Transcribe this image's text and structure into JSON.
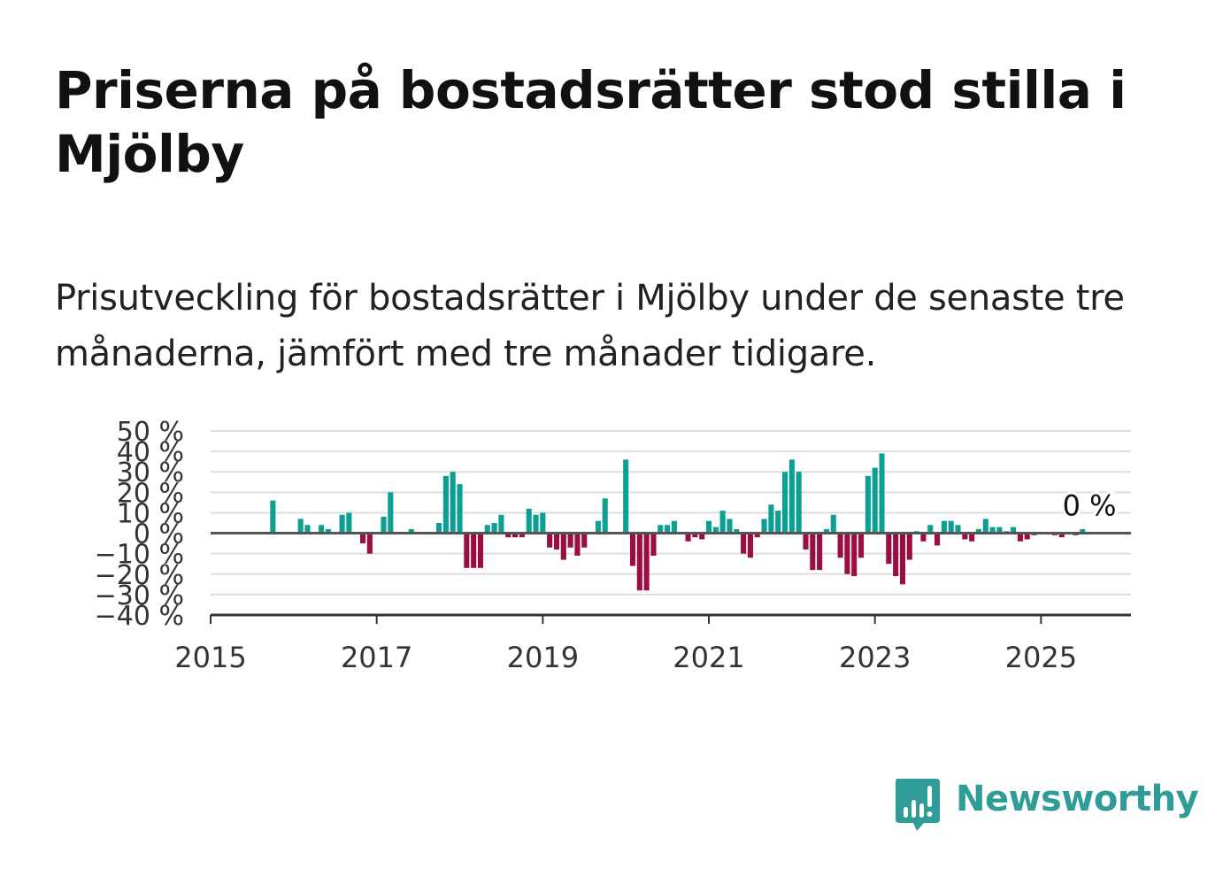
{
  "header": {
    "title": "Priserna på bostadsrätter stod stilla i Mjölby",
    "subtitle": "Prisutveckling för bostadsrätter i Mjölby under de senaste tre månaderna, jämfört med tre månader tidigare."
  },
  "brand": {
    "name": "Newsworthy",
    "logo_icon": "bar-chart-speech-bubble-icon",
    "color": "#2f9c98"
  },
  "colors": {
    "positive": "#0d9e94",
    "negative": "#9b0e44",
    "zero_line": "#555555",
    "grid": "#dddddd",
    "axis": "#333333"
  },
  "chart_data": {
    "type": "bar",
    "title": "",
    "xlabel": "",
    "ylabel": "",
    "ylim": [
      -40,
      50
    ],
    "yticks": [
      50,
      40,
      30,
      20,
      10,
      0,
      -10,
      -20,
      -30,
      -40
    ],
    "ytick_labels": [
      "50 %",
      "40 %",
      "30 %",
      "20 %",
      "10 %",
      "0 %",
      "−10 %",
      "−20 %",
      "−30 %",
      "−40 %"
    ],
    "xlim": [
      "2015-01",
      "2026-02"
    ],
    "xticks": [
      "2015-01",
      "2017-01",
      "2019-01",
      "2021-01",
      "2023-01",
      "2025-01"
    ],
    "xtick_labels": [
      "2015",
      "2017",
      "2019",
      "2021",
      "2023",
      "2025"
    ],
    "grid": true,
    "last_value_label": "0 %",
    "series": [
      {
        "values": [
          [
            "2015-10",
            16
          ],
          [
            "2016-02",
            7
          ],
          [
            "2016-03",
            4
          ],
          [
            "2016-05",
            4
          ],
          [
            "2016-06",
            2
          ],
          [
            "2016-08",
            9
          ],
          [
            "2016-09",
            10
          ],
          [
            "2016-11",
            -5
          ],
          [
            "2016-12",
            -10
          ],
          [
            "2017-02",
            8
          ],
          [
            "2017-03",
            20
          ],
          [
            "2017-06",
            2
          ],
          [
            "2017-10",
            5
          ],
          [
            "2017-11",
            28
          ],
          [
            "2017-12",
            30
          ],
          [
            "2018-01",
            24
          ],
          [
            "2018-02",
            -17
          ],
          [
            "2018-03",
            -17
          ],
          [
            "2018-04",
            -17
          ],
          [
            "2018-05",
            4
          ],
          [
            "2018-06",
            5
          ],
          [
            "2018-07",
            9
          ],
          [
            "2018-08",
            -2
          ],
          [
            "2018-09",
            -2
          ],
          [
            "2018-10",
            -2
          ],
          [
            "2018-11",
            12
          ],
          [
            "2018-12",
            9
          ],
          [
            "2019-01",
            10
          ],
          [
            "2019-02",
            -7
          ],
          [
            "2019-03",
            -8
          ],
          [
            "2019-04",
            -13
          ],
          [
            "2019-05",
            -7
          ],
          [
            "2019-06",
            -11
          ],
          [
            "2019-07",
            -7
          ],
          [
            "2019-09",
            6
          ],
          [
            "2019-10",
            17
          ],
          [
            "2020-01",
            36
          ],
          [
            "2020-02",
            -16
          ],
          [
            "2020-03",
            -28
          ],
          [
            "2020-04",
            -28
          ],
          [
            "2020-05",
            -11
          ],
          [
            "2020-06",
            4
          ],
          [
            "2020-07",
            4
          ],
          [
            "2020-08",
            6
          ],
          [
            "2020-10",
            -4
          ],
          [
            "2020-11",
            -2
          ],
          [
            "2020-12",
            -3
          ],
          [
            "2021-01",
            6
          ],
          [
            "2021-02",
            3
          ],
          [
            "2021-03",
            11
          ],
          [
            "2021-04",
            7
          ],
          [
            "2021-05",
            2
          ],
          [
            "2021-06",
            -10
          ],
          [
            "2021-07",
            -12
          ],
          [
            "2021-08",
            -2
          ],
          [
            "2021-09",
            7
          ],
          [
            "2021-10",
            14
          ],
          [
            "2021-11",
            11
          ],
          [
            "2021-12",
            30
          ],
          [
            "2022-01",
            36
          ],
          [
            "2022-02",
            30
          ],
          [
            "2022-03",
            -8
          ],
          [
            "2022-04",
            -18
          ],
          [
            "2022-05",
            -18
          ],
          [
            "2022-06",
            2
          ],
          [
            "2022-07",
            9
          ],
          [
            "2022-08",
            -12
          ],
          [
            "2022-09",
            -20
          ],
          [
            "2022-10",
            -21
          ],
          [
            "2022-11",
            -12
          ],
          [
            "2022-12",
            28
          ],
          [
            "2023-01",
            32
          ],
          [
            "2023-02",
            39
          ],
          [
            "2023-03",
            -15
          ],
          [
            "2023-04",
            -21
          ],
          [
            "2023-05",
            -25
          ],
          [
            "2023-06",
            -13
          ],
          [
            "2023-07",
            1
          ],
          [
            "2023-08",
            -4
          ],
          [
            "2023-09",
            4
          ],
          [
            "2023-10",
            -6
          ],
          [
            "2023-11",
            6
          ],
          [
            "2023-12",
            6
          ],
          [
            "2024-01",
            4
          ],
          [
            "2024-02",
            -3
          ],
          [
            "2024-03",
            -4
          ],
          [
            "2024-04",
            2
          ],
          [
            "2024-05",
            7
          ],
          [
            "2024-06",
            3
          ],
          [
            "2024-07",
            3
          ],
          [
            "2024-08",
            1
          ],
          [
            "2024-09",
            3
          ],
          [
            "2024-10",
            -4
          ],
          [
            "2024-11",
            -3
          ],
          [
            "2024-12",
            -1
          ],
          [
            "2025-03",
            -1
          ],
          [
            "2025-04",
            -2
          ],
          [
            "2025-06",
            -1
          ],
          [
            "2025-07",
            2
          ],
          [
            "2025-08",
            0
          ]
        ]
      }
    ]
  }
}
